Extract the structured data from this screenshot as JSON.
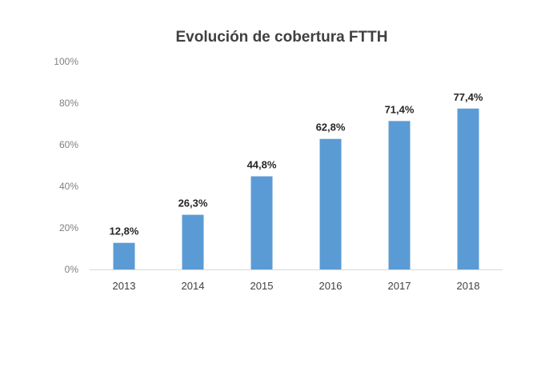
{
  "chart_data": {
    "type": "bar",
    "title": "Evolución de cobertura FTTH",
    "categories": [
      "2013",
      "2014",
      "2015",
      "2016",
      "2017",
      "2018"
    ],
    "values": [
      12.8,
      26.3,
      44.8,
      62.8,
      71.4,
      77.4
    ],
    "data_labels": [
      "12,8%",
      "26,3%",
      "44,8%",
      "62,8%",
      "71,4%",
      "77,4%"
    ],
    "ylim": [
      0,
      100
    ],
    "y_ticks": [
      0,
      20,
      40,
      60,
      80,
      100
    ],
    "y_tick_labels": [
      "0%",
      "20%",
      "40%",
      "60%",
      "80%",
      "100%"
    ],
    "xlabel": "",
    "ylabel": "",
    "grid": false,
    "legend": "none",
    "bar_color": "#5b9bd5"
  }
}
